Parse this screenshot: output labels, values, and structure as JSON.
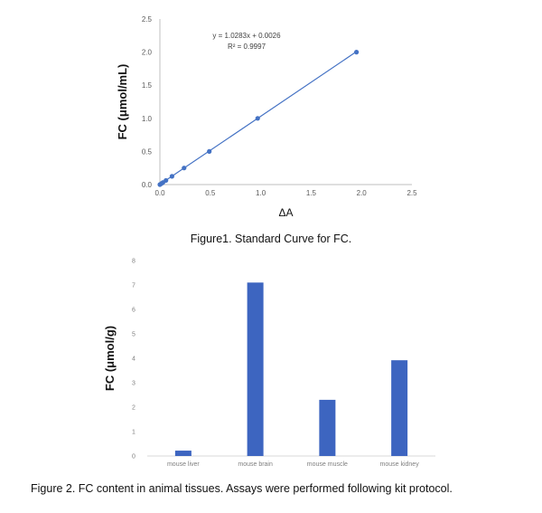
{
  "chart_data": [
    {
      "type": "scatter",
      "title": "",
      "xlabel": "ΔA",
      "ylabel": "FC (μmol/mL)",
      "xlim": [
        0,
        2.5
      ],
      "ylim": [
        0,
        2.5
      ],
      "x_ticks": [
        "0.0",
        "0.5",
        "1.0",
        "1.5",
        "2.0",
        "2.5"
      ],
      "y_ticks": [
        "0.0",
        "0.5",
        "1.0",
        "1.5",
        "2.0",
        "2.5"
      ],
      "points": {
        "x": [
          0,
          0.015,
          0.03,
          0.06,
          0.12,
          0.24,
          0.49,
          0.97,
          1.95
        ],
        "y": [
          0,
          0.0156,
          0.0313,
          0.0625,
          0.125,
          0.25,
          0.5,
          1.0,
          2.0
        ]
      },
      "trendline": {
        "slope": 1.0283,
        "intercept": 0.0026
      },
      "equation": "y = 1.0283x + 0.0026",
      "r_squared": "R² = 0.9997",
      "series_color": "#4472c4"
    },
    {
      "type": "bar",
      "title": "",
      "xlabel": "",
      "ylabel": "FC (μmol/g)",
      "ylim": [
        0,
        8
      ],
      "y_ticks": [
        "0",
        "1",
        "2",
        "3",
        "4",
        "5",
        "6",
        "7",
        "8"
      ],
      "categories": [
        "mouse liver",
        "mouse brain",
        "mouse muscle",
        "mouse kidney"
      ],
      "values": [
        0.22,
        7.1,
        2.3,
        3.92
      ],
      "bar_color": "#3d65c0"
    }
  ],
  "captions": {
    "figure1": "Figure1. Standard Curve for FC.",
    "figure2": "Figure 2. FC content in animal tissues. Assays were performed following kit protocol."
  }
}
